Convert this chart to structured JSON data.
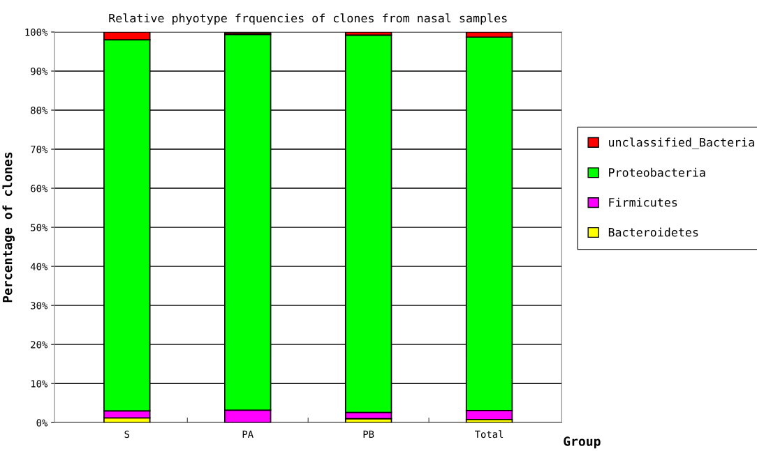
{
  "chart_data": {
    "type": "bar",
    "title": "Relative phyotype frquencies of clones from nasal samples",
    "xlabel": "Group",
    "ylabel": "Percentage of clones",
    "categories": [
      "S",
      "PA",
      "PB",
      "Total"
    ],
    "stacked": true,
    "series": [
      {
        "name": "Bacteroidetes",
        "color": "#ffff00",
        "values": [
          1.2,
          null,
          1.0,
          0.8
        ]
      },
      {
        "name": "Firmicutes",
        "color": "#ff00ff",
        "values": [
          1.8,
          3.2,
          1.6,
          2.3
        ]
      },
      {
        "name": "Proteobacteria",
        "color": "#00ff00",
        "values": [
          95.0,
          96.2,
          96.6,
          95.6
        ]
      },
      {
        "name": "unclassified_Bacteria",
        "color": "#ff0000",
        "values": [
          2.0,
          0.4,
          0.8,
          1.3
        ]
      }
    ],
    "ylim": [
      0,
      100
    ],
    "yticks": [
      {
        "value": 0,
        "label": "0%"
      },
      {
        "value": 10,
        "label": "10%"
      },
      {
        "value": 20,
        "label": "20%"
      },
      {
        "value": 30,
        "label": "30%"
      },
      {
        "value": 40,
        "label": "40%"
      },
      {
        "value": 50,
        "label": "50%"
      },
      {
        "value": 60,
        "label": "60%"
      },
      {
        "value": 70,
        "label": "70%"
      },
      {
        "value": 80,
        "label": "80%"
      },
      {
        "value": 90,
        "label": "90%"
      },
      {
        "value": 100,
        "label": "100%"
      }
    ],
    "grid": "y",
    "legend": "right"
  }
}
